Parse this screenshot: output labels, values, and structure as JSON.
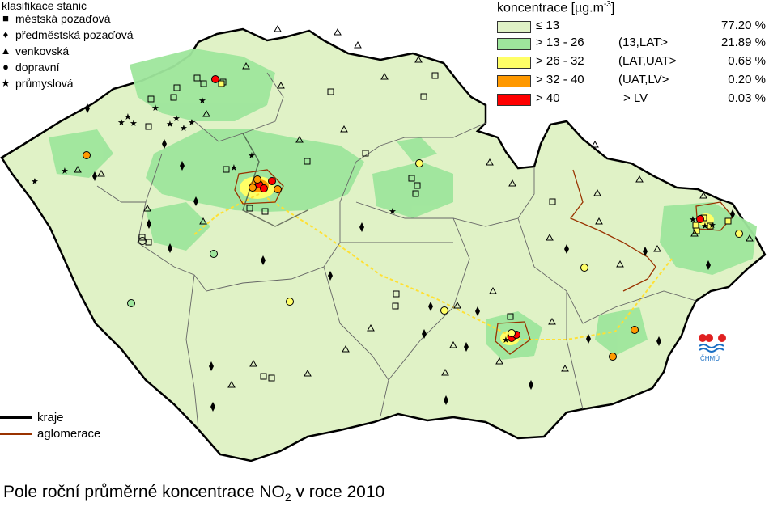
{
  "station_legend": {
    "title": "klasifikace stanic",
    "items": [
      {
        "symbol": "■",
        "label": "městská pozaďová"
      },
      {
        "symbol": "♦",
        "label": "předměstská pozaďová"
      },
      {
        "symbol": "▲",
        "label": "venkovská"
      },
      {
        "symbol": "●",
        "label": "dopravní"
      },
      {
        "symbol": "★",
        "label": "průmyslová"
      }
    ]
  },
  "concentration_legend": {
    "title_prefix": "koncentrace [µg.m",
    "title_sup": "-3",
    "title_suffix": "]",
    "classes": [
      {
        "range": "≤ 13",
        "note": "",
        "percent": "77.20 %",
        "color": "#e0f2c6"
      },
      {
        "range": "> 13 - 26",
        "note": "(13,LAT>",
        "percent": "21.89 %",
        "color": "#9ee69c"
      },
      {
        "range": "> 26 - 32",
        "note": "(LAT,UAT>",
        "percent": "0.68 %",
        "color": "#ffff66"
      },
      {
        "range": "> 32 - 40",
        "note": "(UAT,LV>",
        "percent": "0.20 %",
        "color": "#ff9900"
      },
      {
        "range": "> 40",
        "note": "> LV",
        "percent": "0.03 %",
        "color": "#ff0000"
      }
    ]
  },
  "line_legend": {
    "regions": "kraje",
    "agglomeration": "aglomerace",
    "agglomeration_color": "#993300"
  },
  "logo": {
    "text": "ČHMÚ"
  },
  "map_title": {
    "prefix": "Pole roční průměrné koncentrace NO",
    "sub": "2",
    "suffix": " v roce 2010"
  }
}
